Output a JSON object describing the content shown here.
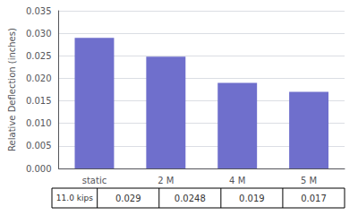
{
  "chart_data": {
    "type": "bar",
    "categories": [
      "static",
      "2 M",
      "4 M",
      "5 M"
    ],
    "values": [
      0.029,
      0.0248,
      0.019,
      0.017
    ],
    "color": "#6f6fcc",
    "ylabel": "Relative Deflection (inches)",
    "ylim": [
      0,
      0.035
    ],
    "yticks": [
      {
        "value": 0,
        "label": "0.000"
      },
      {
        "value": 0.005,
        "label": "0.005"
      },
      {
        "value": 0.01,
        "label": "0.010"
      },
      {
        "value": 0.015,
        "label": "0.015"
      },
      {
        "value": 0.02,
        "label": "0.020"
      },
      {
        "value": 0.025,
        "label": "0.025"
      },
      {
        "value": 0.03,
        "label": "0.030"
      },
      {
        "value": 0.035,
        "label": "0.035"
      }
    ],
    "grid": true,
    "table": {
      "row_label": "11.0 kips",
      "value_labels": [
        "0.029",
        "0.0248",
        "0.019",
        "0.017"
      ]
    }
  }
}
